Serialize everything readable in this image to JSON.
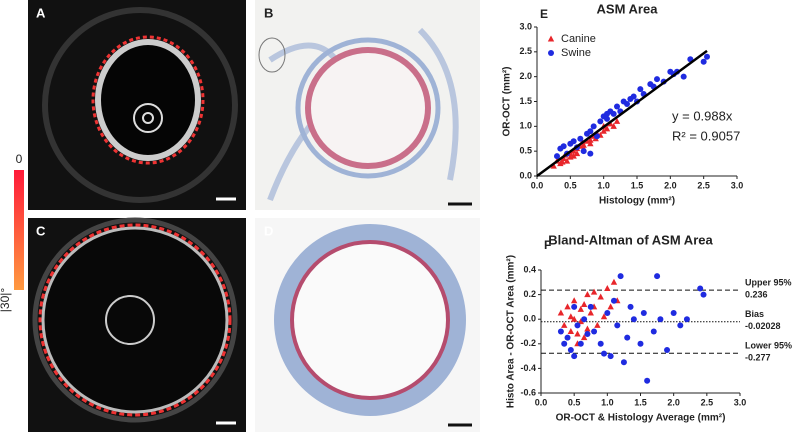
{
  "panels": {
    "labels": [
      "A",
      "B",
      "C",
      "D"
    ],
    "colorbar": {
      "top": "0",
      "bottom": "|30|°"
    }
  },
  "chart_data": [
    {
      "type": "scatter",
      "panel": "E",
      "title": "ASM Area",
      "xlabel": "Histology (mm²)",
      "ylabel": "OR-OCT (mm²)",
      "xlim": [
        0,
        3
      ],
      "ylim": [
        0,
        3
      ],
      "xticks": [
        {
          "value": 0,
          "label": "0.0"
        },
        0.5,
        {
          "value": 1,
          "label": "1.0"
        },
        1.5,
        {
          "value": 2,
          "label": "2.0"
        },
        2.5,
        {
          "value": 3,
          "label": "3.0"
        }
      ],
      "yticks": [
        {
          "value": 0,
          "label": "0.0"
        },
        0.5,
        {
          "value": 1,
          "label": "1.0"
        },
        1.5,
        {
          "value": 2,
          "label": "2.0"
        },
        2.5,
        {
          "value": 3,
          "label": "3.0"
        }
      ],
      "legend": "upper left",
      "series": [
        {
          "name": "Canine",
          "color": "#e8262b",
          "marker": "triangle",
          "x": [
            0.25,
            0.3,
            0.35,
            0.4,
            0.42,
            0.45,
            0.5,
            0.5,
            0.55,
            0.6,
            0.6,
            0.65,
            0.7,
            0.7,
            0.75,
            0.8,
            0.8,
            0.85,
            0.9,
            0.95,
            1.0,
            1.0,
            1.05,
            1.1,
            1.15,
            1.2,
            0.55,
            0.38,
            0.68,
            0.88
          ],
          "values": [
            0.2,
            0.3,
            0.25,
            0.35,
            0.42,
            0.3,
            0.45,
            0.38,
            0.5,
            0.55,
            0.45,
            0.6,
            0.62,
            0.55,
            0.7,
            0.72,
            0.65,
            0.8,
            0.85,
            0.82,
            0.9,
            1.0,
            0.95,
            1.05,
            1.0,
            1.1,
            0.4,
            0.28,
            0.68,
            0.75
          ]
        },
        {
          "name": "Swine",
          "color": "#1f2be0",
          "marker": "circle",
          "x": [
            0.3,
            0.35,
            0.4,
            0.45,
            0.5,
            0.55,
            0.6,
            0.65,
            0.7,
            0.75,
            0.8,
            0.85,
            0.9,
            0.95,
            1.0,
            1.05,
            1.1,
            1.15,
            1.2,
            1.25,
            1.3,
            1.35,
            1.4,
            1.45,
            1.5,
            1.55,
            1.6,
            1.7,
            1.75,
            1.8,
            1.9,
            2.0,
            2.05,
            2.1,
            2.2,
            2.3,
            2.5,
            2.55,
            1.05,
            0.8
          ],
          "values": [
            0.4,
            0.55,
            0.6,
            0.45,
            0.65,
            0.7,
            0.58,
            0.75,
            0.5,
            0.85,
            0.9,
            1.0,
            0.8,
            1.1,
            1.2,
            1.15,
            1.3,
            1.25,
            1.4,
            1.3,
            1.5,
            1.45,
            1.55,
            1.6,
            1.5,
            1.75,
            1.65,
            1.85,
            1.8,
            1.95,
            1.9,
            2.1,
            2.05,
            2.1,
            2.0,
            2.35,
            2.3,
            2.4,
            1.25,
            0.45
          ]
        }
      ],
      "fit_line": {
        "color": "#000000",
        "x": [
          0,
          2.55
        ],
        "values": [
          0,
          2.519
        ]
      },
      "annotations": [
        "y = 0.988x",
        "R² = 0.9057"
      ]
    },
    {
      "type": "scatter",
      "panel": "F",
      "title": "Bland-Altman of ASM Area",
      "xlabel": "OR-OCT & Histology Average (mm²)",
      "ylabel": "Histo Area - OR-OCT Area (mm²)",
      "xlim": [
        0,
        3
      ],
      "ylim": [
        -0.6,
        0.4
      ],
      "xticks": [
        {
          "value": 0,
          "label": "0.0"
        },
        0.5,
        {
          "value": 1,
          "label": "1.0"
        },
        1.5,
        {
          "value": 2,
          "label": "2.0"
        },
        2.5,
        {
          "value": 3,
          "label": "3.0"
        }
      ],
      "yticks": [
        0.4,
        0.2,
        {
          "value": 0,
          "label": "0.0"
        },
        -0.2,
        -0.4,
        -0.6
      ],
      "series": [
        {
          "name": "Canine",
          "color": "#e8262b",
          "marker": "triangle",
          "x": [
            0.3,
            0.35,
            0.4,
            0.45,
            0.5,
            0.5,
            0.55,
            0.6,
            0.6,
            0.65,
            0.7,
            0.7,
            0.75,
            0.8,
            0.85,
            0.9,
            0.95,
            1.0,
            1.05,
            1.1,
            1.15,
            0.45,
            0.55,
            0.65,
            0.8
          ],
          "values": [
            0.05,
            -0.05,
            0.1,
            -0.1,
            0.0,
            0.15,
            -0.12,
            0.08,
            -0.02,
            0.12,
            -0.08,
            0.2,
            0.05,
            0.1,
            -0.05,
            0.18,
            0.02,
            0.25,
            0.1,
            0.3,
            0.15,
            0.02,
            -0.2,
            -0.15,
            0.22
          ]
        },
        {
          "name": "Swine",
          "color": "#1f2be0",
          "marker": "circle",
          "x": [
            0.3,
            0.35,
            0.4,
            0.45,
            0.5,
            0.55,
            0.6,
            0.65,
            0.7,
            0.75,
            0.8,
            0.9,
            1.0,
            1.05,
            1.1,
            1.15,
            1.2,
            1.3,
            1.35,
            1.4,
            1.5,
            1.55,
            1.6,
            1.7,
            1.75,
            1.8,
            1.9,
            2.0,
            2.1,
            2.2,
            2.4,
            2.45,
            1.25,
            0.95,
            0.5
          ],
          "values": [
            -0.1,
            -0.2,
            -0.15,
            -0.25,
            -0.3,
            -0.05,
            -0.2,
            0.0,
            -0.12,
            0.1,
            -0.1,
            -0.2,
            0.05,
            -0.3,
            0.15,
            -0.05,
            0.35,
            -0.15,
            0.1,
            0.0,
            -0.2,
            0.05,
            -0.5,
            -0.1,
            0.35,
            0.0,
            -0.25,
            0.05,
            -0.05,
            0.0,
            0.25,
            0.2,
            -0.35,
            -0.28,
            0.1
          ]
        }
      ],
      "reference_lines": [
        {
          "label": "Upper 95%",
          "value": 0.236,
          "dash": "dashed"
        },
        {
          "label": "Bias",
          "value": -0.02028,
          "dash": "dotted"
        },
        {
          "label": "Lower 95%",
          "value": -0.277,
          "dash": "dashed"
        }
      ]
    }
  ]
}
